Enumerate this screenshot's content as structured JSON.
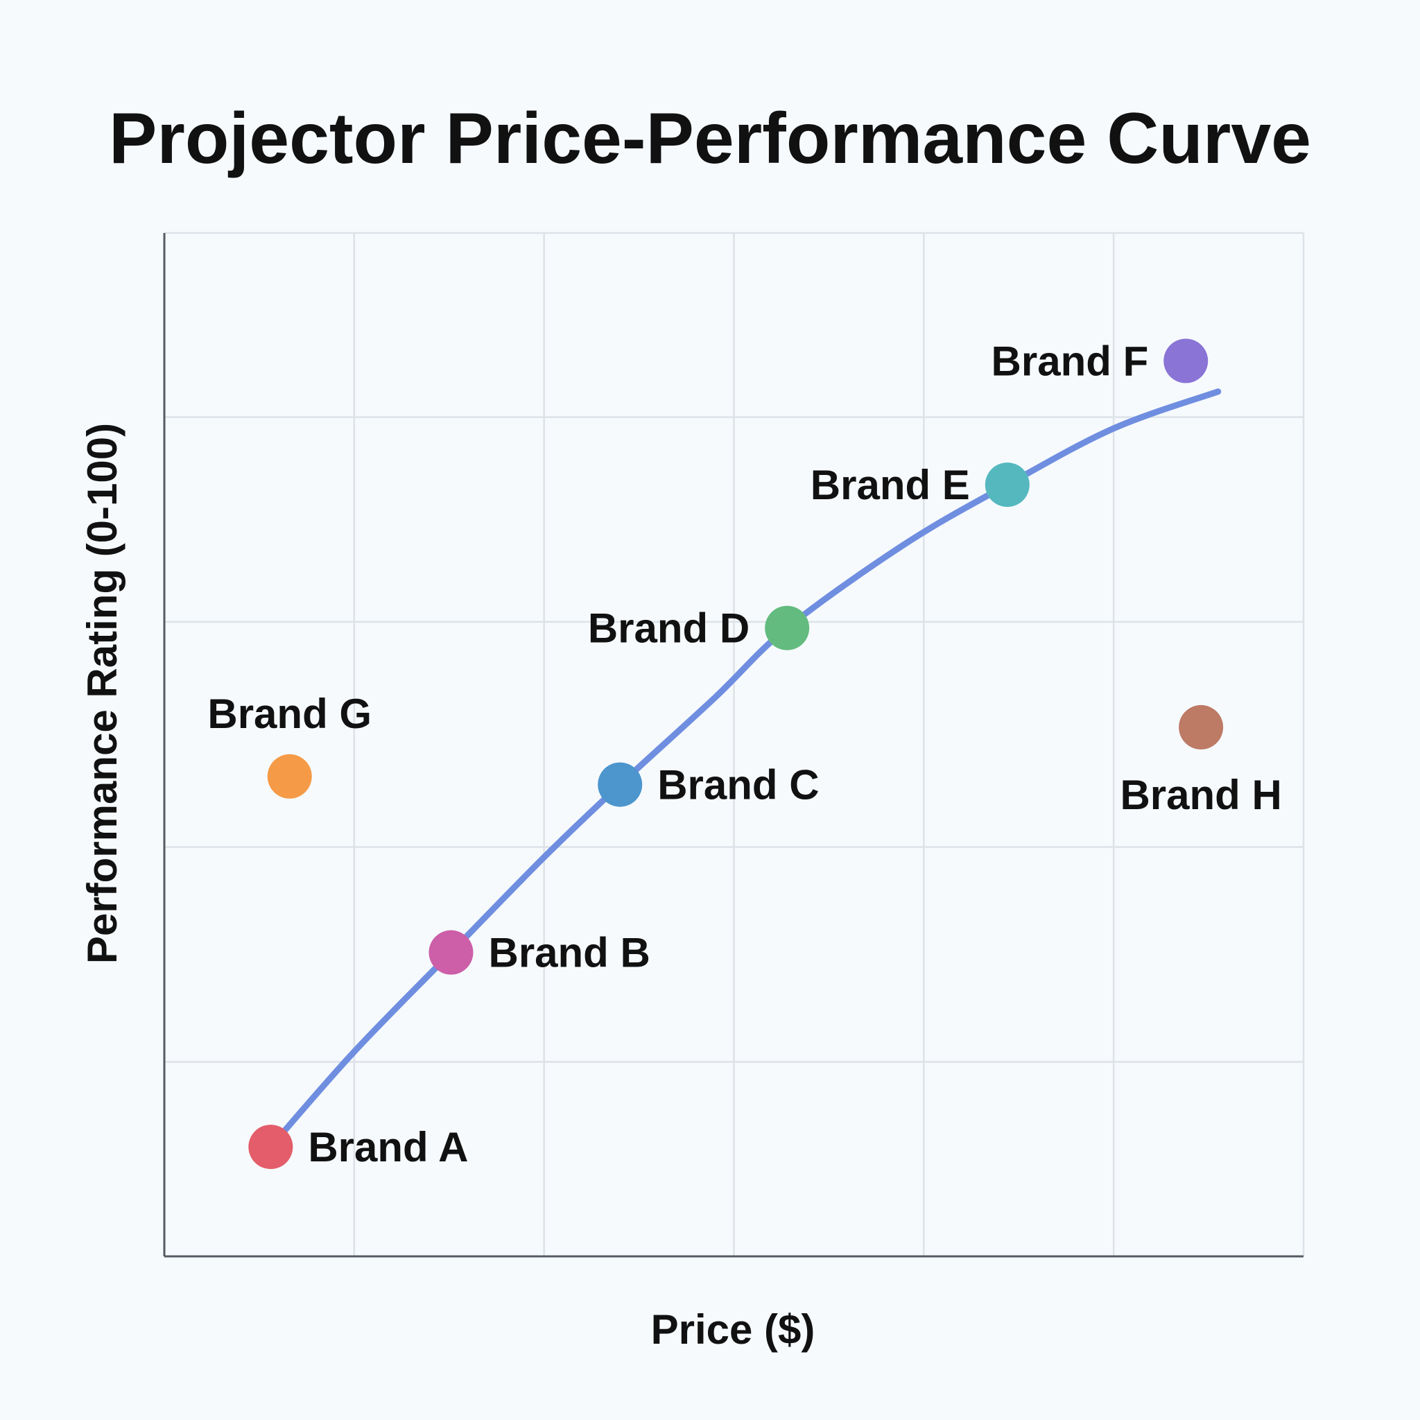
{
  "chart_data": {
    "type": "scatter",
    "title": "Projector Price-Performance Curve",
    "xlabel": "Price ($)",
    "ylabel": "Performance Rating (0-100)",
    "xlim": [
      0,
      6
    ],
    "ylim": [
      0,
      100
    ],
    "x_gridlines": [
      0,
      1,
      2,
      3,
      4,
      5,
      6
    ],
    "y_gridlines": [
      0,
      19,
      40,
      62,
      82,
      100
    ],
    "grid": true,
    "legend": "none",
    "points": [
      {
        "label": "Brand A",
        "x": 0.56,
        "y": 10.7,
        "color": "#e35d6a",
        "label_side": "right"
      },
      {
        "label": "Brand B",
        "x": 1.51,
        "y": 29.7,
        "color": "#cc5fa8",
        "label_side": "right"
      },
      {
        "label": "Brand C",
        "x": 2.4,
        "y": 46.1,
        "color": "#4c95cd",
        "label_side": "right"
      },
      {
        "label": "Brand D",
        "x": 3.28,
        "y": 61.4,
        "color": "#63bb7f",
        "label_side": "left"
      },
      {
        "label": "Brand E",
        "x": 4.44,
        "y": 75.4,
        "color": "#55b8bf",
        "label_side": "left"
      },
      {
        "label": "Brand F",
        "x": 5.38,
        "y": 87.5,
        "color": "#8a74d6",
        "label_side": "left"
      },
      {
        "label": "Brand G",
        "x": 0.66,
        "y": 46.9,
        "color": "#f59a47",
        "label_side": "above"
      },
      {
        "label": "Brand H",
        "x": 5.46,
        "y": 51.7,
        "color": "#bd7a65",
        "label_side": "below"
      }
    ],
    "trend_line": {
      "color": "#6f8ee0",
      "x": [
        0.56,
        1.0,
        1.51,
        2.0,
        2.4,
        2.9,
        3.28,
        3.9,
        4.44,
        5.0,
        5.55
      ],
      "y": [
        10.7,
        20.0,
        29.7,
        39.0,
        46.1,
        54.6,
        61.4,
        69.6,
        75.4,
        80.9,
        84.5
      ]
    }
  }
}
